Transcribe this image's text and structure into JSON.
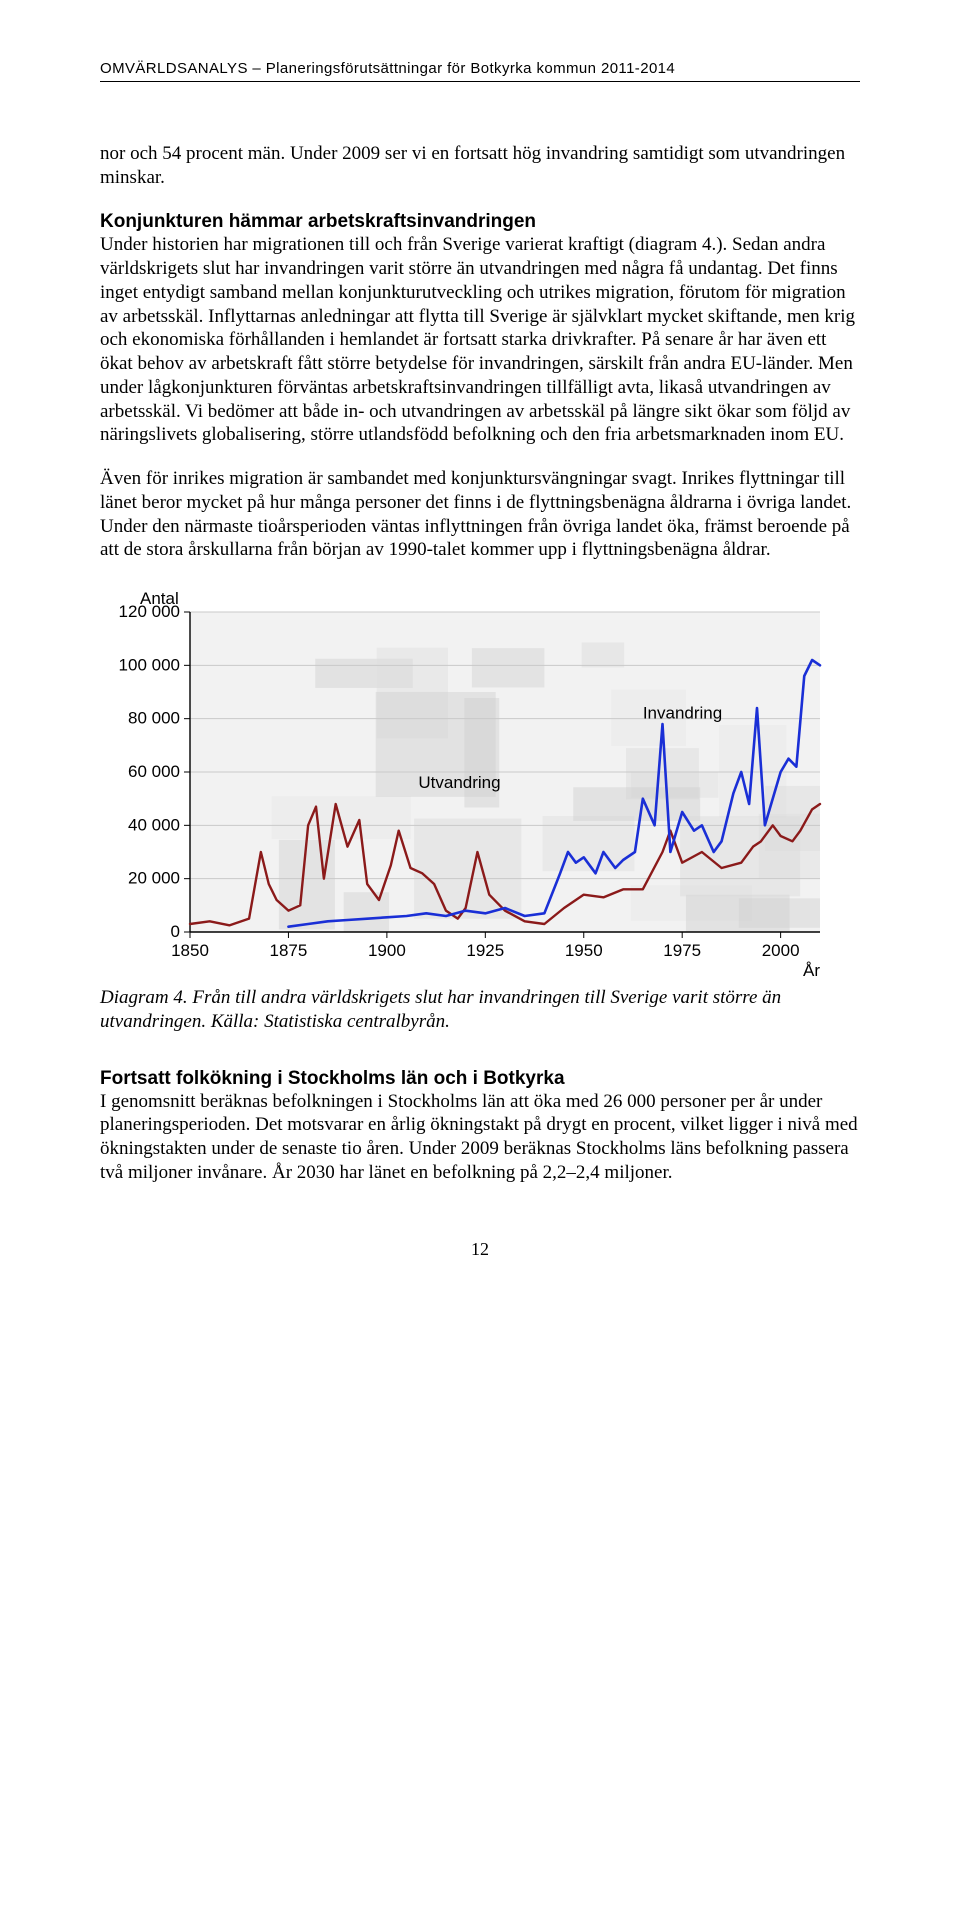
{
  "header": {
    "text": "OMVÄRLDSANALYS – Planeringsförutsättningar för Botkyrka kommun 2011-2014"
  },
  "para1_lead": "nor och 54 procent män. Under 2009 ser vi en fortsatt hög invandring samtidigt som utvandringen minskar.",
  "para2_head": "Konjunkturen hämmar arbetskraftsinvandringen",
  "para2_body": "Under historien har migrationen till och från Sverige varierat kraftigt (diagram 4.). Sedan andra världskrigets slut har invandringen varit större än utvandringen med några få undantag. Det finns inget entydigt samband mellan konjunkturutveckling och utrikes migration, förutom för migration av arbetsskäl. Inflyttarnas anledningar att flytta till Sverige är självklart mycket skiftande, men krig och ekonomiska förhållanden i hemlandet är fortsatt starka drivkrafter. På senare år har även ett ökat behov av arbetskraft fått större betydelse för invandringen, särskilt från andra EU-länder. Men under lågkonjunkturen förväntas arbetskraftsinvandringen tillfälligt avta, likaså utvandringen av arbetsskäl. Vi bedömer att både in- och utvandringen av arbetsskäl på längre sikt ökar som följd av näringslivets globalisering, större utlandsfödd befolkning och den fria arbetsmarknaden inom EU.",
  "para3": "Även för inrikes migration är sambandet med konjunktursvängningar svagt. Inrikes flyttningar till länet beror mycket på hur många personer det finns i de flyttningsbenägna åldrarna i övriga landet. Under den närmaste tioårsperioden väntas inflyttningen från övriga landet öka, främst beroende på att de stora årskullarna från början av 1990-talet kommer upp i flyttningsbenägna åldrar.",
  "chart": {
    "type": "line",
    "y_title": "Antal",
    "x_title": "År",
    "xlim": [
      1850,
      2010
    ],
    "ylim": [
      0,
      120000
    ],
    "ytick_step": 20000,
    "yticks": [
      "0",
      "20 000",
      "40 000",
      "60 000",
      "80 000",
      "100 000",
      "120 000"
    ],
    "xtick_step": 25,
    "xticks": [
      "1850",
      "1875",
      "1900",
      "1925",
      "1950",
      "1975",
      "2000"
    ],
    "background_color": "#f2f2f2",
    "grid_color": "#c9c9c9",
    "axis_color": "#000000",
    "label_fontsize": 17,
    "series": [
      {
        "name": "Utvandring",
        "label": "Utvandring",
        "color": "#8b1a1a",
        "line_width": 2.4,
        "label_pos_year": 1908,
        "label_pos_value": 54000,
        "data": [
          [
            1850,
            3000
          ],
          [
            1855,
            4000
          ],
          [
            1860,
            2500
          ],
          [
            1865,
            5000
          ],
          [
            1868,
            30000
          ],
          [
            1870,
            18000
          ],
          [
            1872,
            12000
          ],
          [
            1875,
            8000
          ],
          [
            1878,
            10000
          ],
          [
            1880,
            40000
          ],
          [
            1882,
            47000
          ],
          [
            1884,
            20000
          ],
          [
            1887,
            48000
          ],
          [
            1890,
            32000
          ],
          [
            1893,
            42000
          ],
          [
            1895,
            18000
          ],
          [
            1898,
            12000
          ],
          [
            1901,
            25000
          ],
          [
            1903,
            38000
          ],
          [
            1906,
            24000
          ],
          [
            1909,
            22000
          ],
          [
            1912,
            18000
          ],
          [
            1915,
            8000
          ],
          [
            1918,
            5000
          ],
          [
            1920,
            9000
          ],
          [
            1923,
            30000
          ],
          [
            1926,
            14000
          ],
          [
            1930,
            8000
          ],
          [
            1935,
            4000
          ],
          [
            1940,
            3000
          ],
          [
            1945,
            9000
          ],
          [
            1950,
            14000
          ],
          [
            1955,
            13000
          ],
          [
            1960,
            16000
          ],
          [
            1965,
            16000
          ],
          [
            1970,
            30000
          ],
          [
            1972,
            38000
          ],
          [
            1975,
            26000
          ],
          [
            1980,
            30000
          ],
          [
            1985,
            24000
          ],
          [
            1990,
            26000
          ],
          [
            1993,
            32000
          ],
          [
            1995,
            34000
          ],
          [
            1998,
            40000
          ],
          [
            2000,
            36000
          ],
          [
            2003,
            34000
          ],
          [
            2005,
            38000
          ],
          [
            2008,
            46000
          ],
          [
            2010,
            48000
          ]
        ]
      },
      {
        "name": "Invandring",
        "label": "Invandring",
        "color": "#1a2fd6",
        "line_width": 2.6,
        "label_pos_year": 1965,
        "label_pos_value": 80000,
        "data": [
          [
            1875,
            2000
          ],
          [
            1880,
            3000
          ],
          [
            1885,
            4000
          ],
          [
            1890,
            4500
          ],
          [
            1895,
            5000
          ],
          [
            1900,
            5500
          ],
          [
            1905,
            6000
          ],
          [
            1910,
            7000
          ],
          [
            1915,
            6000
          ],
          [
            1920,
            8000
          ],
          [
            1925,
            7000
          ],
          [
            1930,
            9000
          ],
          [
            1935,
            6000
          ],
          [
            1940,
            7000
          ],
          [
            1944,
            22000
          ],
          [
            1946,
            30000
          ],
          [
            1948,
            26000
          ],
          [
            1950,
            28000
          ],
          [
            1953,
            22000
          ],
          [
            1955,
            30000
          ],
          [
            1958,
            24000
          ],
          [
            1960,
            27000
          ],
          [
            1963,
            30000
          ],
          [
            1965,
            50000
          ],
          [
            1968,
            40000
          ],
          [
            1970,
            78000
          ],
          [
            1972,
            30000
          ],
          [
            1975,
            45000
          ],
          [
            1978,
            38000
          ],
          [
            1980,
            40000
          ],
          [
            1983,
            30000
          ],
          [
            1985,
            34000
          ],
          [
            1988,
            52000
          ],
          [
            1990,
            60000
          ],
          [
            1992,
            48000
          ],
          [
            1994,
            84000
          ],
          [
            1996,
            40000
          ],
          [
            1998,
            50000
          ],
          [
            2000,
            60000
          ],
          [
            2002,
            65000
          ],
          [
            2004,
            62000
          ],
          [
            2006,
            96000
          ],
          [
            2008,
            102000
          ],
          [
            2010,
            100000
          ]
        ]
      }
    ]
  },
  "chart_caption_label": "Diagram 4.",
  "chart_caption_text": " Från till andra världskrigets slut har invandringen till Sverige varit större än utvandringen. Källa: Statistiska centralbyrån.",
  "section2_head": "Fortsatt folkökning i Stockholms län och i Botkyrka",
  "para4": "I genomsnitt beräknas befolkningen i Stockholms län att öka med 26 000 personer per år under planeringsperioden. Det motsvarar en årlig ökningstakt på drygt en procent, vilket ligger i nivå med ökningstakten under de senaste tio åren. Under 2009 beräknas Stockholms läns befolkning passera två miljoner invånare. År 2030 har länet en befolkning på 2,2–2,4 miljoner.",
  "page_number": "12"
}
